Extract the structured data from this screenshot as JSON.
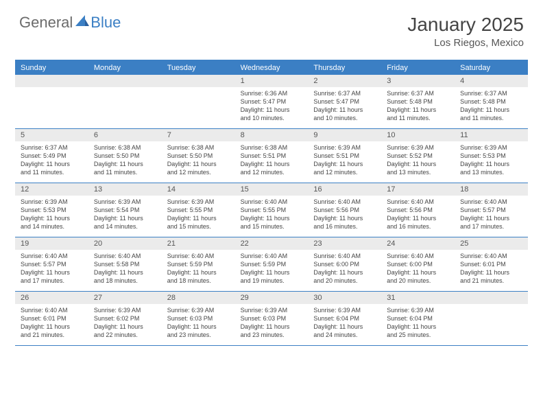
{
  "logo": {
    "text1": "General",
    "text2": "Blue"
  },
  "title": "January 2025",
  "location": "Los Riegos, Mexico",
  "accent_color": "#3b7fc4",
  "daynum_bg": "#ebebeb",
  "day_headers": [
    "Sunday",
    "Monday",
    "Tuesday",
    "Wednesday",
    "Thursday",
    "Friday",
    "Saturday"
  ],
  "weeks": [
    [
      null,
      null,
      null,
      {
        "n": "1",
        "sr": "Sunrise: 6:36 AM",
        "ss": "Sunset: 5:47 PM",
        "d1": "Daylight: 11 hours",
        "d2": "and 10 minutes."
      },
      {
        "n": "2",
        "sr": "Sunrise: 6:37 AM",
        "ss": "Sunset: 5:47 PM",
        "d1": "Daylight: 11 hours",
        "d2": "and 10 minutes."
      },
      {
        "n": "3",
        "sr": "Sunrise: 6:37 AM",
        "ss": "Sunset: 5:48 PM",
        "d1": "Daylight: 11 hours",
        "d2": "and 11 minutes."
      },
      {
        "n": "4",
        "sr": "Sunrise: 6:37 AM",
        "ss": "Sunset: 5:48 PM",
        "d1": "Daylight: 11 hours",
        "d2": "and 11 minutes."
      }
    ],
    [
      {
        "n": "5",
        "sr": "Sunrise: 6:37 AM",
        "ss": "Sunset: 5:49 PM",
        "d1": "Daylight: 11 hours",
        "d2": "and 11 minutes."
      },
      {
        "n": "6",
        "sr": "Sunrise: 6:38 AM",
        "ss": "Sunset: 5:50 PM",
        "d1": "Daylight: 11 hours",
        "d2": "and 11 minutes."
      },
      {
        "n": "7",
        "sr": "Sunrise: 6:38 AM",
        "ss": "Sunset: 5:50 PM",
        "d1": "Daylight: 11 hours",
        "d2": "and 12 minutes."
      },
      {
        "n": "8",
        "sr": "Sunrise: 6:38 AM",
        "ss": "Sunset: 5:51 PM",
        "d1": "Daylight: 11 hours",
        "d2": "and 12 minutes."
      },
      {
        "n": "9",
        "sr": "Sunrise: 6:39 AM",
        "ss": "Sunset: 5:51 PM",
        "d1": "Daylight: 11 hours",
        "d2": "and 12 minutes."
      },
      {
        "n": "10",
        "sr": "Sunrise: 6:39 AM",
        "ss": "Sunset: 5:52 PM",
        "d1": "Daylight: 11 hours",
        "d2": "and 13 minutes."
      },
      {
        "n": "11",
        "sr": "Sunrise: 6:39 AM",
        "ss": "Sunset: 5:53 PM",
        "d1": "Daylight: 11 hours",
        "d2": "and 13 minutes."
      }
    ],
    [
      {
        "n": "12",
        "sr": "Sunrise: 6:39 AM",
        "ss": "Sunset: 5:53 PM",
        "d1": "Daylight: 11 hours",
        "d2": "and 14 minutes."
      },
      {
        "n": "13",
        "sr": "Sunrise: 6:39 AM",
        "ss": "Sunset: 5:54 PM",
        "d1": "Daylight: 11 hours",
        "d2": "and 14 minutes."
      },
      {
        "n": "14",
        "sr": "Sunrise: 6:39 AM",
        "ss": "Sunset: 5:55 PM",
        "d1": "Daylight: 11 hours",
        "d2": "and 15 minutes."
      },
      {
        "n": "15",
        "sr": "Sunrise: 6:40 AM",
        "ss": "Sunset: 5:55 PM",
        "d1": "Daylight: 11 hours",
        "d2": "and 15 minutes."
      },
      {
        "n": "16",
        "sr": "Sunrise: 6:40 AM",
        "ss": "Sunset: 5:56 PM",
        "d1": "Daylight: 11 hours",
        "d2": "and 16 minutes."
      },
      {
        "n": "17",
        "sr": "Sunrise: 6:40 AM",
        "ss": "Sunset: 5:56 PM",
        "d1": "Daylight: 11 hours",
        "d2": "and 16 minutes."
      },
      {
        "n": "18",
        "sr": "Sunrise: 6:40 AM",
        "ss": "Sunset: 5:57 PM",
        "d1": "Daylight: 11 hours",
        "d2": "and 17 minutes."
      }
    ],
    [
      {
        "n": "19",
        "sr": "Sunrise: 6:40 AM",
        "ss": "Sunset: 5:57 PM",
        "d1": "Daylight: 11 hours",
        "d2": "and 17 minutes."
      },
      {
        "n": "20",
        "sr": "Sunrise: 6:40 AM",
        "ss": "Sunset: 5:58 PM",
        "d1": "Daylight: 11 hours",
        "d2": "and 18 minutes."
      },
      {
        "n": "21",
        "sr": "Sunrise: 6:40 AM",
        "ss": "Sunset: 5:59 PM",
        "d1": "Daylight: 11 hours",
        "d2": "and 18 minutes."
      },
      {
        "n": "22",
        "sr": "Sunrise: 6:40 AM",
        "ss": "Sunset: 5:59 PM",
        "d1": "Daylight: 11 hours",
        "d2": "and 19 minutes."
      },
      {
        "n": "23",
        "sr": "Sunrise: 6:40 AM",
        "ss": "Sunset: 6:00 PM",
        "d1": "Daylight: 11 hours",
        "d2": "and 20 minutes."
      },
      {
        "n": "24",
        "sr": "Sunrise: 6:40 AM",
        "ss": "Sunset: 6:00 PM",
        "d1": "Daylight: 11 hours",
        "d2": "and 20 minutes."
      },
      {
        "n": "25",
        "sr": "Sunrise: 6:40 AM",
        "ss": "Sunset: 6:01 PM",
        "d1": "Daylight: 11 hours",
        "d2": "and 21 minutes."
      }
    ],
    [
      {
        "n": "26",
        "sr": "Sunrise: 6:40 AM",
        "ss": "Sunset: 6:01 PM",
        "d1": "Daylight: 11 hours",
        "d2": "and 21 minutes."
      },
      {
        "n": "27",
        "sr": "Sunrise: 6:39 AM",
        "ss": "Sunset: 6:02 PM",
        "d1": "Daylight: 11 hours",
        "d2": "and 22 minutes."
      },
      {
        "n": "28",
        "sr": "Sunrise: 6:39 AM",
        "ss": "Sunset: 6:03 PM",
        "d1": "Daylight: 11 hours",
        "d2": "and 23 minutes."
      },
      {
        "n": "29",
        "sr": "Sunrise: 6:39 AM",
        "ss": "Sunset: 6:03 PM",
        "d1": "Daylight: 11 hours",
        "d2": "and 23 minutes."
      },
      {
        "n": "30",
        "sr": "Sunrise: 6:39 AM",
        "ss": "Sunset: 6:04 PM",
        "d1": "Daylight: 11 hours",
        "d2": "and 24 minutes."
      },
      {
        "n": "31",
        "sr": "Sunrise: 6:39 AM",
        "ss": "Sunset: 6:04 PM",
        "d1": "Daylight: 11 hours",
        "d2": "and 25 minutes."
      },
      null
    ]
  ]
}
